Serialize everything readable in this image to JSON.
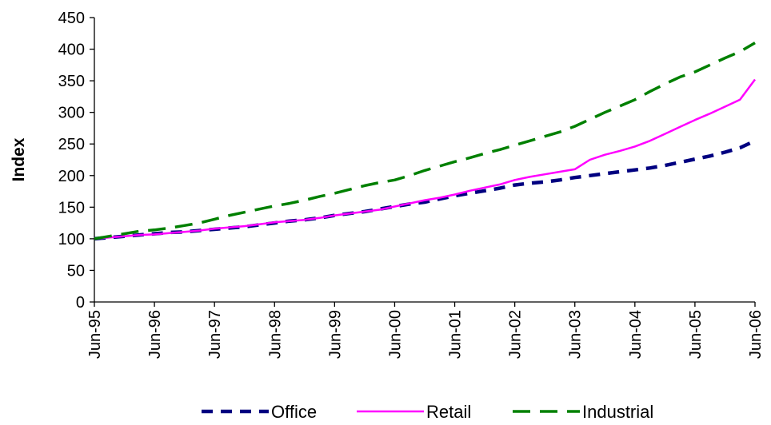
{
  "chart_data": {
    "type": "line",
    "title": "",
    "xlabel": "",
    "ylabel": "Index",
    "ylim": [
      0,
      450
    ],
    "y_ticks": [
      "0",
      "50",
      "100",
      "150",
      "200",
      "250",
      "300",
      "350",
      "400",
      "450"
    ],
    "x_ticks": [
      "Jun-95",
      "Jun-96",
      "Jun-97",
      "Jun-98",
      "Jun-99",
      "Jun-00",
      "Jun-01",
      "Jun-02",
      "Jun-03",
      "Jun-04",
      "Jun-05",
      "Jun-06"
    ],
    "x": [
      "Jun-95",
      "Sep-95",
      "Dec-95",
      "Mar-96",
      "Jun-96",
      "Sep-96",
      "Dec-96",
      "Mar-97",
      "Jun-97",
      "Sep-97",
      "Dec-97",
      "Mar-98",
      "Jun-98",
      "Sep-98",
      "Dec-98",
      "Mar-99",
      "Jun-99",
      "Sep-99",
      "Dec-99",
      "Mar-00",
      "Jun-00",
      "Sep-00",
      "Dec-00",
      "Mar-01",
      "Jun-01",
      "Sep-01",
      "Dec-01",
      "Mar-02",
      "Jun-02",
      "Sep-02",
      "Dec-02",
      "Mar-03",
      "Jun-03",
      "Sep-03",
      "Dec-03",
      "Mar-04",
      "Jun-04",
      "Sep-04",
      "Dec-04",
      "Mar-05",
      "Jun-05",
      "Sep-05",
      "Dec-05",
      "Mar-06",
      "Jun-06"
    ],
    "grid": false,
    "legend_position": "bottom",
    "series": [
      {
        "name": "Office",
        "color": "#000080",
        "dash": "dash-dot-bold",
        "values": [
          100,
          102,
          104,
          106,
          108,
          110,
          111,
          113,
          115,
          117,
          119,
          122,
          125,
          128,
          130,
          133,
          137,
          140,
          143,
          147,
          151,
          155,
          158,
          163,
          168,
          172,
          176,
          180,
          185,
          188,
          190,
          193,
          197,
          200,
          203,
          206,
          209,
          212,
          216,
          221,
          226,
          231,
          237,
          244,
          255
        ]
      },
      {
        "name": "Retail",
        "color": "#FF00FF",
        "dash": "solid",
        "values": [
          100,
          102,
          104,
          106,
          107,
          109,
          111,
          113,
          116,
          118,
          120,
          123,
          126,
          128,
          130,
          133,
          137,
          140,
          143,
          146,
          151,
          156,
          161,
          165,
          170,
          176,
          181,
          186,
          193,
          198,
          202,
          206,
          210,
          225,
          233,
          239,
          246,
          255,
          266,
          277,
          288,
          298,
          309,
          320,
          352
        ]
      },
      {
        "name": "Industrial",
        "color": "#008000",
        "dash": "long-dash",
        "values": [
          100,
          104,
          108,
          112,
          114,
          117,
          121,
          125,
          131,
          137,
          142,
          147,
          152,
          156,
          161,
          167,
          172,
          178,
          184,
          189,
          193,
          200,
          208,
          215,
          222,
          228,
          235,
          241,
          248,
          255,
          262,
          269,
          278,
          289,
          300,
          310,
          320,
          333,
          345,
          356,
          364,
          375,
          386,
          396,
          410
        ]
      }
    ]
  }
}
